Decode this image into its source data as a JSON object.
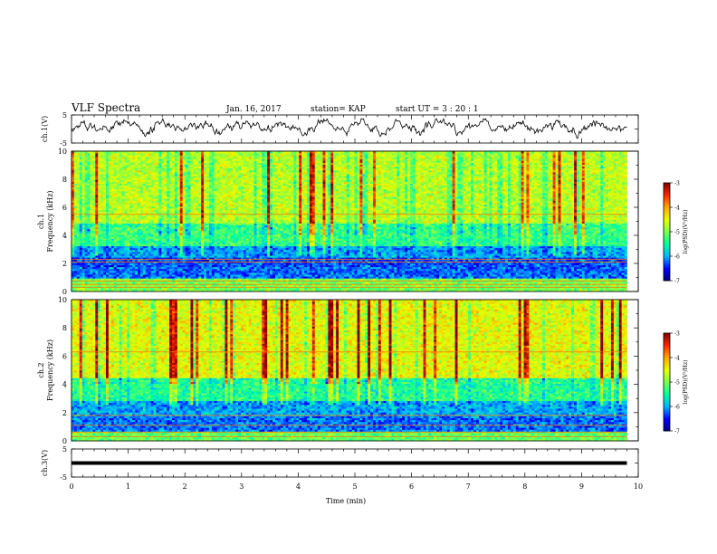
{
  "header": {
    "title": "VLF Spectra",
    "date": "Jan. 16, 2017",
    "station": "station= KAP",
    "start": "start  UT =  3 : 20 : 1"
  },
  "chart_data": [
    {
      "type": "line",
      "panel": "ch1-waveform",
      "ylabel": "ch.1(V)",
      "ylim": [
        -5,
        5
      ],
      "yticks_labeled": [
        "5",
        "-5"
      ],
      "xlim": [
        0,
        10
      ],
      "color": "#000000"
    },
    {
      "type": "heatmap",
      "panel": "ch1-spectrogram",
      "ylabel": "ch.1\nFrequency (kHz)",
      "ylabel_lines": [
        "ch.1",
        "Frequency (kHz)"
      ],
      "ylim": [
        0,
        10
      ],
      "yticks": [
        "0",
        "2",
        "4",
        "6",
        "8",
        "10"
      ],
      "xlim": [
        0,
        10
      ],
      "data_end_min": 9.8,
      "colorbar": {
        "label": "log(PSD)(V²/Hz)",
        "range": [
          -7,
          -3
        ],
        "ticks": [
          "-3",
          "-4",
          "-5",
          "-6",
          "-7"
        ],
        "colormap": [
          "#7f0000",
          "#ff0000",
          "#ff8c00",
          "#ffff00",
          "#80ff80",
          "#00ff80",
          "#00d0ff",
          "#0040ff",
          "#0000a0",
          "#000080"
        ]
      },
      "bands": [
        {
          "freq_khz": [
            0.0,
            0.9
          ],
          "level": -5.0
        },
        {
          "freq_khz": [
            0.9,
            1.7
          ],
          "level": -6.2
        },
        {
          "freq_khz": [
            1.7,
            2.5
          ],
          "level": -6.3
        },
        {
          "freq_khz": [
            2.5,
            3.3
          ],
          "level": -6.0
        },
        {
          "freq_khz": [
            3.3,
            4.8
          ],
          "level": -5.3
        },
        {
          "freq_khz": [
            4.8,
            10.0
          ],
          "level": -4.7
        }
      ],
      "tone_lines_khz": [
        0.3,
        0.5,
        0.75,
        2.1,
        2.3,
        5.5
      ]
    },
    {
      "type": "heatmap",
      "panel": "ch2-spectrogram",
      "ylabel": "ch.2\nFrequency (kHz)",
      "ylabel_lines": [
        "ch.2",
        "Frequency (kHz)"
      ],
      "ylim": [
        0,
        10
      ],
      "yticks": [
        "0",
        "2",
        "4",
        "6",
        "8",
        "10"
      ],
      "xlim": [
        0,
        10
      ],
      "data_end_min": 9.8,
      "colorbar": {
        "label": "log(PSD)(V²/Hz)",
        "range": [
          -7,
          -3
        ],
        "ticks": [
          "-3",
          "-4",
          "-5",
          "-6",
          "-7"
        ],
        "colormap": [
          "#7f0000",
          "#ff0000",
          "#ff8c00",
          "#ffff00",
          "#80ff80",
          "#00ff80",
          "#00d0ff",
          "#0040ff",
          "#0000a0",
          "#000080"
        ]
      },
      "bands": [
        {
          "freq_khz": [
            0.0,
            0.7
          ],
          "level": -5.1
        },
        {
          "freq_khz": [
            0.7,
            1.8
          ],
          "level": -6.2
        },
        {
          "freq_khz": [
            1.8,
            2.8
          ],
          "level": -6.0
        },
        {
          "freq_khz": [
            2.8,
            4.5
          ],
          "level": -5.4
        },
        {
          "freq_khz": [
            4.5,
            10.0
          ],
          "level": -4.5
        }
      ],
      "tone_lines_khz": [
        0.3,
        0.6,
        1.1,
        1.8,
        6.3
      ]
    },
    {
      "type": "line",
      "panel": "ch3-waveform",
      "ylabel": "ch.3(V)",
      "ylim": [
        -5,
        5
      ],
      "yticks_labeled": [
        "5",
        "-5"
      ],
      "xlim": [
        0,
        10
      ],
      "flat_value": 0,
      "color": "#000000",
      "xlabel": "Time  (min)",
      "xticks": [
        "0",
        "1",
        "2",
        "3",
        "4",
        "5",
        "6",
        "7",
        "8",
        "9",
        "10"
      ]
    }
  ]
}
